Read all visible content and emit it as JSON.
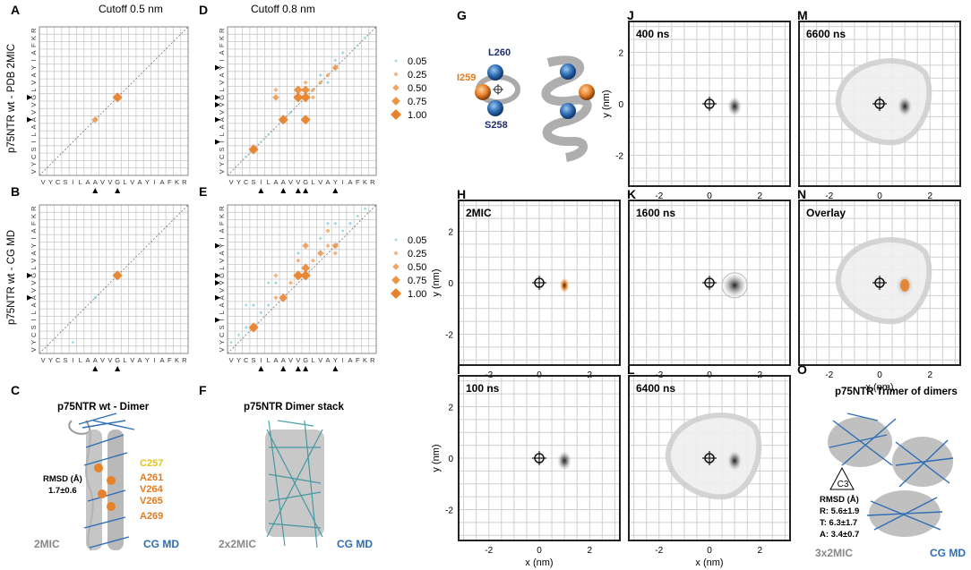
{
  "colors": {
    "orange": "#e8822a",
    "cyan": "#8fd3df",
    "grid": "#c9c9c9",
    "panel_border": "#222222",
    "navy": "#1e2d6b",
    "blue": "#2f6db5",
    "label_orange": "#e07a1e",
    "label_yellow": "#e3c21b",
    "gray_text": "#888888"
  },
  "panel_letters": [
    "A",
    "B",
    "C",
    "D",
    "E",
    "F",
    "G",
    "H",
    "I",
    "J",
    "K",
    "L",
    "M",
    "N",
    "O"
  ],
  "column_titles": {
    "a": "Cutoff 0.5 nm",
    "d": "Cutoff 0.8 nm"
  },
  "row_labels": {
    "top": "p75NTR wt - PDB 2MIC",
    "bottom": "p75NTR wt - CG MD"
  },
  "sequence": [
    "V",
    "Y",
    "C",
    "S",
    "I",
    "L",
    "A",
    "A",
    "V",
    "V",
    "G",
    "L",
    "V",
    "A",
    "Y",
    "I",
    "A",
    "F",
    "K",
    "R"
  ],
  "arrow_positions": [
    7,
    10
  ],
  "arrow_positions_d": [
    4,
    7,
    9,
    10,
    14
  ],
  "legend_values": [
    "0.05",
    "0.25",
    "0.50",
    "0.75",
    "1.00"
  ],
  "chart_data": [
    {
      "panel": "A",
      "type": "heatmap",
      "title": "Cutoff 0.5 nm",
      "ylabel": "p75NTR wt - PDB 2MIC",
      "categories": [
        "V",
        "Y",
        "C",
        "S",
        "I",
        "L",
        "A",
        "A",
        "V",
        "V",
        "G",
        "L",
        "V",
        "A",
        "Y",
        "I",
        "A",
        "F",
        "K",
        "R"
      ],
      "points": [
        [
          7,
          7,
          0.5,
          "orange"
        ],
        [
          10,
          10,
          0.9,
          "orange"
        ]
      ]
    },
    {
      "panel": "B",
      "type": "heatmap",
      "ylabel": "p75NTR wt - CG MD",
      "categories": [
        "V",
        "Y",
        "C",
        "S",
        "I",
        "L",
        "A",
        "A",
        "V",
        "V",
        "G",
        "L",
        "V",
        "A",
        "Y",
        "I",
        "A",
        "F",
        "K",
        "R"
      ],
      "points": [
        [
          7,
          7,
          0.1,
          "cyan"
        ],
        [
          10,
          10,
          0.9,
          "orange"
        ],
        [
          4,
          1,
          0.05,
          "cyan"
        ]
      ]
    },
    {
      "panel": "D",
      "type": "heatmap",
      "title": "Cutoff 0.8 nm",
      "categories": [
        "V",
        "Y",
        "C",
        "S",
        "I",
        "L",
        "A",
        "A",
        "V",
        "V",
        "G",
        "L",
        "V",
        "A",
        "Y",
        "I",
        "A",
        "F",
        "K",
        "R"
      ],
      "points": [
        [
          3,
          3,
          0.9,
          "orange"
        ],
        [
          7,
          7,
          0.9,
          "orange"
        ],
        [
          10,
          10,
          0.9,
          "orange"
        ],
        [
          9,
          10,
          0.9,
          "orange"
        ],
        [
          10,
          11,
          0.75,
          "orange"
        ],
        [
          6,
          10,
          0.5,
          "orange"
        ],
        [
          6,
          11,
          0.25,
          "orange"
        ],
        [
          10,
          7,
          0.9,
          "orange"
        ],
        [
          9,
          11,
          0.75,
          "orange"
        ],
        [
          14,
          14,
          0.5,
          "orange"
        ],
        [
          13,
          13,
          0.25,
          "orange"
        ],
        [
          14,
          15,
          0.1,
          "cyan"
        ],
        [
          12,
          12,
          0.25,
          "orange"
        ],
        [
          11,
          11,
          0.25,
          "orange"
        ],
        [
          10,
          12,
          0.25,
          "orange"
        ],
        [
          11,
          10,
          0.25,
          "orange"
        ],
        [
          8,
          8,
          0.1,
          "cyan"
        ],
        [
          17,
          17,
          0.05,
          "cyan"
        ],
        [
          18,
          18,
          0.05,
          "cyan"
        ],
        [
          15,
          16,
          0.1,
          "cyan"
        ],
        [
          5,
          5,
          0.05,
          "cyan"
        ],
        [
          4,
          4,
          0.05,
          "cyan"
        ],
        [
          2,
          2,
          0.05,
          "cyan"
        ],
        [
          13,
          12,
          0.1,
          "cyan"
        ],
        [
          12,
          13,
          0.1,
          "cyan"
        ]
      ]
    },
    {
      "panel": "E",
      "type": "heatmap",
      "categories": [
        "V",
        "Y",
        "C",
        "S",
        "I",
        "L",
        "A",
        "A",
        "V",
        "V",
        "G",
        "L",
        "V",
        "A",
        "Y",
        "I",
        "A",
        "F",
        "K",
        "R"
      ],
      "points": [
        [
          3,
          3,
          0.9,
          "orange"
        ],
        [
          7,
          7,
          0.75,
          "orange"
        ],
        [
          10,
          10,
          0.9,
          "orange"
        ],
        [
          9,
          10,
          0.9,
          "orange"
        ],
        [
          10,
          11,
          0.75,
          "orange"
        ],
        [
          10,
          14,
          0.5,
          "orange"
        ],
        [
          14,
          14,
          0.5,
          "orange"
        ],
        [
          13,
          14,
          0.25,
          "orange"
        ],
        [
          14,
          13,
          0.25,
          "orange"
        ],
        [
          12,
          13,
          0.5,
          "orange"
        ],
        [
          6,
          7,
          0.25,
          "orange"
        ],
        [
          8,
          9,
          0.25,
          "orange"
        ],
        [
          6,
          10,
          0.25,
          "orange"
        ],
        [
          13,
          16,
          0.25,
          "orange"
        ],
        [
          16,
          17,
          0.1,
          "cyan"
        ],
        [
          2,
          3,
          0.1,
          "cyan"
        ],
        [
          4,
          5,
          0.1,
          "cyan"
        ],
        [
          5,
          6,
          0.1,
          "cyan"
        ],
        [
          1,
          2,
          0.05,
          "cyan"
        ],
        [
          0,
          1,
          0.05,
          "cyan"
        ],
        [
          11,
          12,
          0.25,
          "orange"
        ],
        [
          9,
          12,
          0.25,
          "orange"
        ],
        [
          3,
          6,
          0.1,
          "cyan"
        ],
        [
          6,
          9,
          0.1,
          "cyan"
        ],
        [
          13,
          17,
          0.1,
          "cyan"
        ],
        [
          17,
          18,
          0.05,
          "cyan"
        ],
        [
          18,
          19,
          0.05,
          "cyan"
        ],
        [
          14,
          17,
          0.1,
          "cyan"
        ],
        [
          2,
          6,
          0.05,
          "cyan"
        ],
        [
          9,
          13,
          0.1,
          "cyan"
        ],
        [
          12,
          15,
          0.1,
          "cyan"
        ],
        [
          15,
          16,
          0.05,
          "cyan"
        ],
        [
          5,
          9,
          0.05,
          "cyan"
        ]
      ]
    },
    {
      "panel": "H",
      "type": "heatmap",
      "label": "2MIC",
      "xlim": [
        -3.2,
        3.2
      ],
      "ylim": [
        -3.2,
        3.2
      ],
      "ylabel": "y (nm)",
      "density_center": [
        1.0,
        -0.1
      ],
      "color": "orange"
    }
  ],
  "density_panels": [
    {
      "key": "J",
      "label": "400 ns",
      "cx": 1.0,
      "ring": false,
      "blob": "gray"
    },
    {
      "key": "M",
      "label": "6600 ns",
      "cx": 1.0,
      "ring": true,
      "blob": "gray"
    },
    {
      "key": "H",
      "label": "2MIC",
      "cx": 1.0,
      "ring": false,
      "blob": "orange"
    },
    {
      "key": "K",
      "label": "1600 ns",
      "cx": 1.0,
      "ring": false,
      "blob": "halo"
    },
    {
      "key": "N",
      "label": "Overlay",
      "cx": 1.0,
      "ring": true,
      "blob": "overlay"
    },
    {
      "key": "I",
      "label": "100 ns",
      "cx": 1.0,
      "ring": false,
      "blob": "gray"
    },
    {
      "key": "L",
      "label": "6400 ns",
      "cx": 1.0,
      "ring": true,
      "blob": "gray"
    }
  ],
  "density_axes": {
    "ticks": [
      "-2",
      "0",
      "2"
    ],
    "xlabel": "x (nm)",
    "ylabel": "y (nm)"
  },
  "panel_c": {
    "title": "p75NTR wt - Dimer",
    "rmsd": "RMSD (Å)",
    "rmsd_value": "1.7±0.6",
    "residues": [
      "C257",
      "A261",
      "V264",
      "V265",
      "A269"
    ],
    "left_label": "2MIC",
    "right_label": "CG MD"
  },
  "panel_f": {
    "title": "p75NTR Dimer stack",
    "left_label": "2x2MIC",
    "right_label": "CG MD"
  },
  "panel_g": {
    "labels": [
      "L260",
      "I259",
      "S258"
    ]
  },
  "panel_o": {
    "title": "p75NTR Trimer of dimers",
    "symmetry": "C3",
    "rmsd": "RMSD (Å)",
    "r": "R: 5.6±1.9",
    "t": "T: 6.3±1.7",
    "a": "A: 3.4±0.7",
    "left_label": "3x2MIC",
    "right_label": "CG MD"
  }
}
